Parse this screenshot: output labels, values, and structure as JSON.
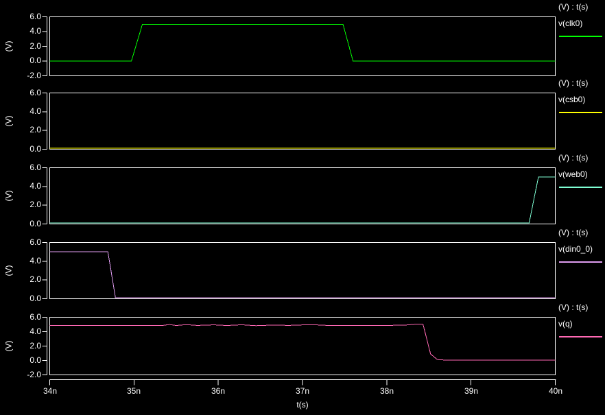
{
  "app": {
    "background": "#000000",
    "axis_color": "#ffffff",
    "text_color": "#ffffff"
  },
  "x_axis": {
    "label": "t(s)",
    "tick_labels": [
      "34n",
      "35n",
      "36n",
      "37n",
      "38n",
      "39n",
      "40n"
    ],
    "tick_values_ns": [
      34,
      35,
      36,
      37,
      38,
      39,
      40
    ],
    "xlim_ns": [
      34,
      40
    ]
  },
  "chart_data": [
    {
      "type": "line",
      "name": "v(clk0)",
      "legend_header": "(V) : t(s)",
      "ylabel": "(V)",
      "color": "#00ff00",
      "ylim": [
        -2,
        6
      ],
      "y_tick_labels": [
        "6.0",
        "4.0",
        "2.0",
        "0.0",
        "-2.0"
      ],
      "y_tick_values": [
        6,
        4,
        2,
        0,
        -2
      ],
      "x_ns": [
        34,
        34.97,
        35.1,
        37.48,
        37.6,
        40
      ],
      "v": [
        0,
        0,
        5,
        5,
        0,
        0
      ]
    },
    {
      "type": "line",
      "name": "v(csb0)",
      "legend_header": "(V) : t(s)",
      "ylabel": "(V)",
      "color": "#ffff00",
      "ylim": [
        0,
        6
      ],
      "y_tick_labels": [
        "6.0",
        "4.0",
        "2.0",
        "0.0"
      ],
      "y_tick_values": [
        6,
        4,
        2,
        0
      ],
      "x_ns": [
        34,
        40
      ],
      "v": [
        0,
        0
      ]
    },
    {
      "type": "line",
      "name": "v(web0)",
      "legend_header": "(V) : t(s)",
      "ylabel": "(V)",
      "color": "#7fffd4",
      "ylim": [
        0,
        6
      ],
      "y_tick_labels": [
        "6.0",
        "4.0",
        "2.0",
        "0.0"
      ],
      "y_tick_values": [
        6,
        4,
        2,
        0
      ],
      "x_ns": [
        34,
        39.69,
        39.8,
        40
      ],
      "v": [
        0,
        0,
        5,
        5
      ]
    },
    {
      "type": "line",
      "name": "v(din0_0)",
      "legend_header": "(V) : t(s)",
      "ylabel": "(V)",
      "color": "#df9df1",
      "ylim": [
        0,
        6
      ],
      "y_tick_labels": [
        "6.0",
        "4.0",
        "2.0",
        "0.0"
      ],
      "y_tick_values": [
        6,
        4,
        2,
        0
      ],
      "x_ns": [
        34,
        34.69,
        34.78,
        40
      ],
      "v": [
        5,
        5,
        0,
        0
      ]
    },
    {
      "type": "line",
      "name": "v(q)",
      "legend_header": "(V) : t(s)",
      "ylabel": "(V)",
      "color": "#ff69b4",
      "ylim": [
        -2,
        6
      ],
      "y_tick_labels": [
        "6.0",
        "4.0",
        "2.0",
        "0.0",
        "-2.0"
      ],
      "y_tick_values": [
        6,
        4,
        2,
        0,
        -2
      ],
      "x_ns": [
        34,
        35.35,
        35.42,
        35.5,
        35.62,
        35.75,
        35.95,
        36.1,
        36.28,
        36.45,
        36.6,
        36.85,
        37.1,
        37.28,
        37.5,
        38.2,
        38.33,
        38.43,
        38.52,
        38.6,
        38.7,
        40
      ],
      "v": [
        4.88,
        4.88,
        4.99,
        4.86,
        4.97,
        4.87,
        4.94,
        4.86,
        4.95,
        4.83,
        4.9,
        4.88,
        4.97,
        4.88,
        4.86,
        4.89,
        5.03,
        5.03,
        0.9,
        0.12,
        0.05,
        0.05
      ]
    }
  ]
}
